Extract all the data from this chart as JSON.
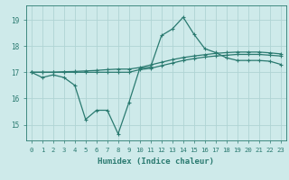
{
  "xlabel": "Humidex (Indice chaleur)",
  "ylabel": "",
  "bg_color": "#ceeaea",
  "grid_color": "#afd4d4",
  "line_color": "#2a7a70",
  "xlim": [
    -0.5,
    23.5
  ],
  "ylim": [
    14.4,
    19.55
  ],
  "yticks": [
    15,
    16,
    17,
    18,
    19
  ],
  "xticks": [
    0,
    1,
    2,
    3,
    4,
    5,
    6,
    7,
    8,
    9,
    10,
    11,
    12,
    13,
    14,
    15,
    16,
    17,
    18,
    19,
    20,
    21,
    22,
    23
  ],
  "line1_x": [
    0,
    1,
    2,
    3,
    4,
    5,
    6,
    7,
    8,
    9,
    10,
    11,
    12,
    13,
    14,
    15,
    16,
    17,
    18,
    19,
    20,
    21,
    22,
    23
  ],
  "line1_y": [
    17.0,
    16.8,
    16.9,
    16.8,
    16.5,
    15.2,
    15.55,
    15.55,
    14.65,
    15.85,
    17.15,
    17.2,
    18.4,
    18.65,
    19.1,
    18.45,
    17.9,
    17.75,
    17.55,
    17.45,
    17.45,
    17.45,
    17.42,
    17.3
  ],
  "line2_x": [
    0,
    1,
    2,
    3,
    4,
    5,
    6,
    7,
    8,
    9,
    10,
    11,
    12,
    13,
    14,
    15,
    16,
    17,
    18,
    19,
    20,
    21,
    22,
    23
  ],
  "line2_y": [
    17.0,
    17.0,
    17.0,
    17.0,
    17.0,
    17.0,
    17.0,
    17.0,
    17.0,
    17.0,
    17.1,
    17.15,
    17.25,
    17.35,
    17.45,
    17.52,
    17.58,
    17.62,
    17.65,
    17.68,
    17.68,
    17.68,
    17.65,
    17.62
  ],
  "line3_x": [
    0,
    1,
    2,
    3,
    4,
    5,
    6,
    7,
    8,
    9,
    10,
    11,
    12,
    13,
    14,
    15,
    16,
    17,
    18,
    19,
    20,
    21,
    22,
    23
  ],
  "line3_y": [
    17.0,
    17.0,
    17.0,
    17.02,
    17.03,
    17.05,
    17.07,
    17.1,
    17.12,
    17.12,
    17.18,
    17.28,
    17.38,
    17.48,
    17.56,
    17.62,
    17.67,
    17.72,
    17.75,
    17.77,
    17.77,
    17.77,
    17.74,
    17.7
  ]
}
